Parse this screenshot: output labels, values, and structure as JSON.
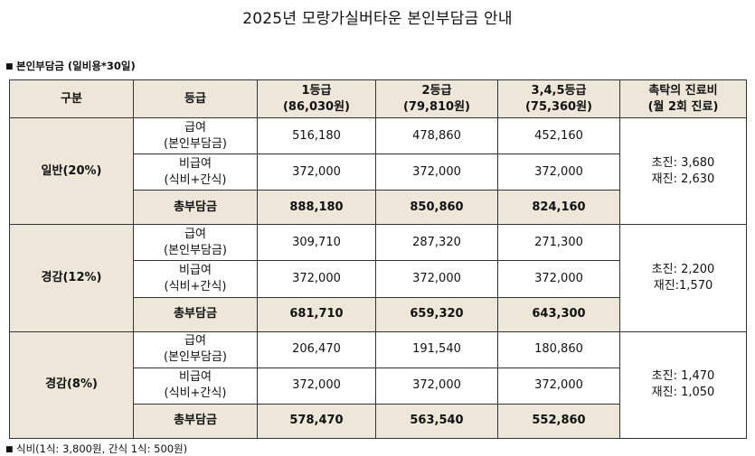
{
  "title": "2025년 모랑가실버타운 본인부담금 안내",
  "section_label": "본인부담금 (일비용*30일)",
  "header": {
    "group": "구분",
    "grade": "등급",
    "g1_line1": "1등급",
    "g1_line2": "(86,030원)",
    "g2_line1": "2등급",
    "g2_line2": "(79,810원)",
    "g345_line1": "3,4,5등급",
    "g345_line2": "(75,360원)",
    "visit_line1": "촉탁의 진료비",
    "visit_line2": "(월 2회 진료)"
  },
  "row_labels": {
    "benefit_line1": "급여",
    "benefit_line2": "(본인부담금)",
    "nonbenefit_line1": "비급여",
    "nonbenefit_line2": "(식비+간식)",
    "total": "총부담금"
  },
  "groups": [
    {
      "name": "일반(20%)",
      "benefit": [
        "516,180",
        "478,860",
        "452,160"
      ],
      "nonbenefit": [
        "372,000",
        "372,000",
        "372,000"
      ],
      "total": [
        "888,180",
        "850,860",
        "824,160"
      ],
      "visit_first": "초진: 3,680",
      "visit_repeat": "재진: 2,630"
    },
    {
      "name": "경감(12%)",
      "benefit": [
        "309,710",
        "287,320",
        "271,300"
      ],
      "nonbenefit": [
        "372,000",
        "372,000",
        "372,000"
      ],
      "total": [
        "681,710",
        "659,320",
        "643,300"
      ],
      "visit_first": "초진: 2,200",
      "visit_repeat": "재진:1,570"
    },
    {
      "name": "경감(8%)",
      "benefit": [
        "206,470",
        "191,540",
        "180,860"
      ],
      "nonbenefit": [
        "372,000",
        "372,000",
        "372,000"
      ],
      "total": [
        "578,470",
        "563,540",
        "552,860"
      ],
      "visit_first": "초진: 1,470",
      "visit_repeat": "재진: 1,050"
    }
  ],
  "note": "식비(1식: 3,800원, 간식 1식: 500원)"
}
